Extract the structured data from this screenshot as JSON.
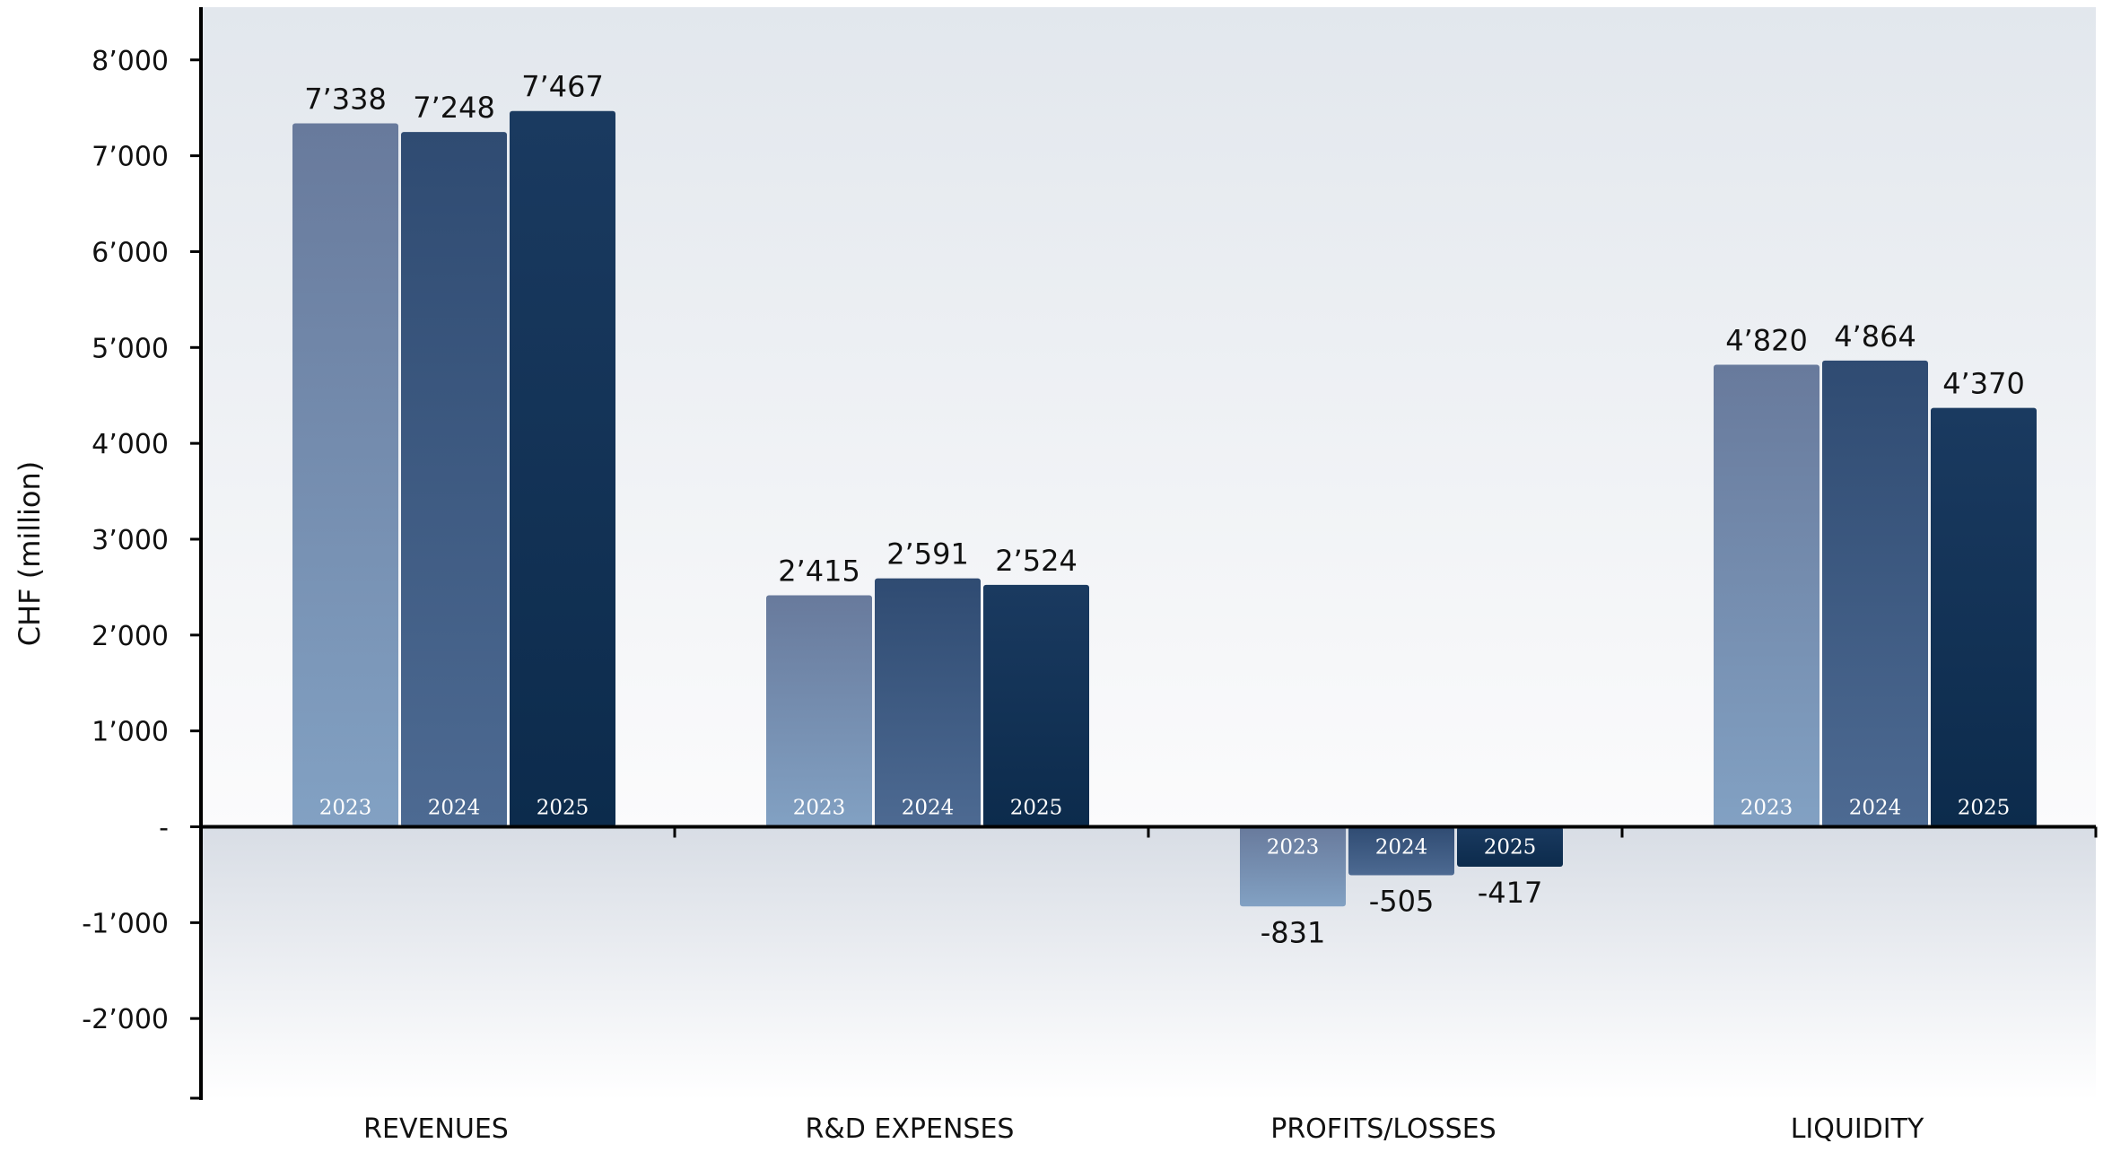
{
  "chart_data": {
    "type": "bar",
    "categories": [
      "REVENUES",
      "R&D EXPENSES",
      "PROFITS/LOSSES",
      "LIQUIDITY"
    ],
    "series": [
      {
        "name": "2023",
        "values": [
          7338,
          2415,
          -831,
          4820
        ],
        "value_labels": [
          "7’338",
          "2’415",
          "-831",
          "4’820"
        ]
      },
      {
        "name": "2024",
        "values": [
          7248,
          2591,
          -505,
          4864
        ],
        "value_labels": [
          "7’248",
          "2’591",
          "-505",
          "4’864"
        ]
      },
      {
        "name": "2025",
        "values": [
          7467,
          2524,
          -417,
          4370
        ],
        "value_labels": [
          "7’467",
          "2’524",
          "-417",
          "4’370"
        ]
      }
    ],
    "ylabel": "CHF (million)",
    "ylim": [
      -2850,
      8550
    ],
    "y_ticks": [
      {
        "value": 8000,
        "label": "8’000"
      },
      {
        "value": 7000,
        "label": "7’000"
      },
      {
        "value": 6000,
        "label": "6’000"
      },
      {
        "value": 5000,
        "label": "5’000"
      },
      {
        "value": 4000,
        "label": "4’000"
      },
      {
        "value": 3000,
        "label": "3’000"
      },
      {
        "value": 2000,
        "label": "2’000"
      },
      {
        "value": 1000,
        "label": "1’000"
      },
      {
        "value": 0,
        "label": "-"
      },
      {
        "value": -1000,
        "label": "-1’000"
      },
      {
        "value": -2000,
        "label": "-2’000"
      }
    ],
    "grid": false,
    "legend": "none",
    "series_colors": [
      {
        "top": "#687a9c",
        "bottom": "#82a1c3"
      },
      {
        "top": "#2f4b72",
        "bottom": "#4d6a92"
      },
      {
        "top": "#1a3a60",
        "bottom": "#0c2b4c"
      }
    ]
  }
}
